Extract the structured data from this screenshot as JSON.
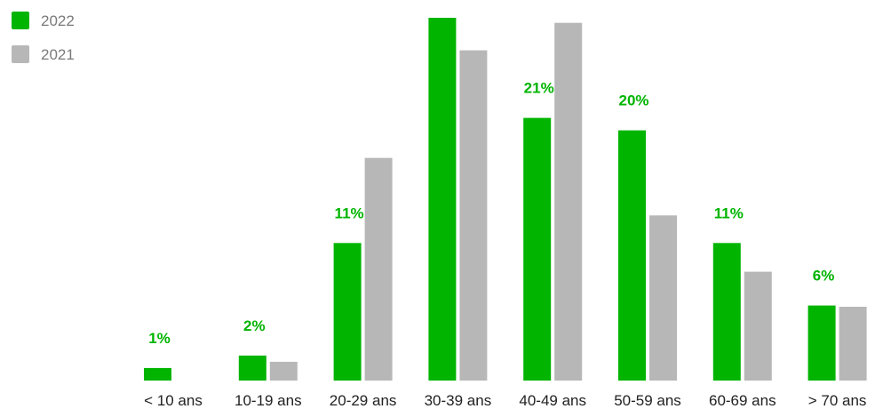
{
  "chart_data": {
    "type": "bar",
    "categories": [
      "< 10 ans",
      "10-19 ans",
      "20-29 ans",
      "30-39 ans",
      "40-49 ans",
      "50-59 ans",
      "60-69 ans",
      "> 70 ans"
    ],
    "series": [
      {
        "name": "2022",
        "color": "#00b400",
        "values": [
          1,
          2,
          11,
          29,
          21,
          20,
          11,
          6
        ]
      },
      {
        "name": "2021",
        "color": "#b7b7b7",
        "values": [
          0,
          1.5,
          17.8,
          26.4,
          28.6,
          13.2,
          8.7,
          5.9
        ]
      }
    ],
    "data_labels": [
      "1%",
      "2%",
      "11%",
      null,
      "21%",
      "20%",
      "11%",
      "6%"
    ],
    "legend": {
      "position": "top-left",
      "entries": [
        "2022",
        "2021"
      ]
    },
    "ylim": [
      0,
      29.5
    ],
    "grid": false,
    "axes_visible": false
  }
}
